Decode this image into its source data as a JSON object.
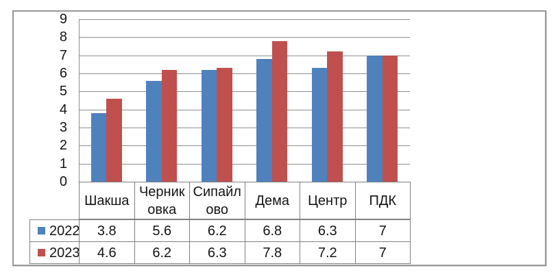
{
  "chart_data": {
    "type": "bar",
    "title": "",
    "xlabel": "",
    "ylabel": "",
    "categories": [
      "Шакша",
      "Черниковка",
      "Сипайлово",
      "Дема",
      "Центр",
      "ПДК"
    ],
    "category_display_lines": [
      [
        "Шакша"
      ],
      [
        "Черник",
        "овка"
      ],
      [
        "Сипайл",
        "ово"
      ],
      [
        "Дема"
      ],
      [
        "Центр"
      ],
      [
        "ПДК"
      ]
    ],
    "series": [
      {
        "name": "2022",
        "color": "#4F81BD",
        "values": [
          3.8,
          5.6,
          6.2,
          6.8,
          6.3,
          7
        ]
      },
      {
        "name": "2023",
        "color": "#C0504D",
        "values": [
          4.6,
          6.2,
          6.3,
          7.8,
          7.2,
          7
        ]
      }
    ],
    "ylim": [
      0,
      9
    ],
    "ytick_step": 1,
    "grid": true,
    "legend_position": "data-table-left",
    "data_table_shown": true
  }
}
